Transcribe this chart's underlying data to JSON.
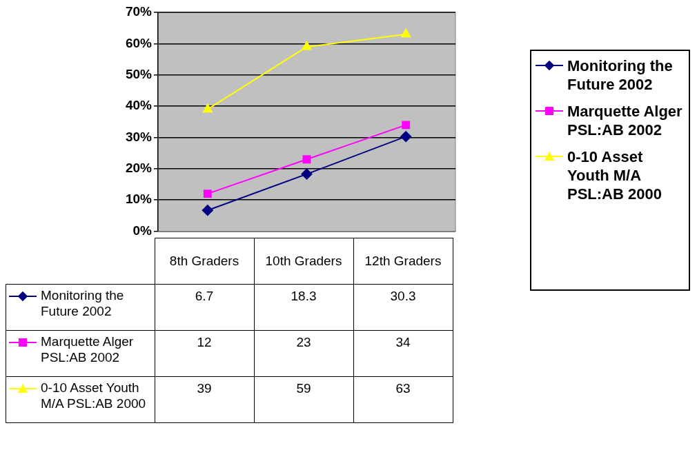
{
  "chart_data": {
    "type": "line",
    "categories": [
      "8th Graders",
      "10th Graders",
      "12th Graders"
    ],
    "series": [
      {
        "name": "Monitoring the Future 2002",
        "color": "#000080",
        "marker": "diamond",
        "values": [
          6.7,
          18.3,
          30.3
        ]
      },
      {
        "name": "Marquette Alger PSL:AB 2002",
        "color": "#ff00ff",
        "marker": "square",
        "values": [
          12,
          23,
          34
        ]
      },
      {
        "name": "0-10 Asset Youth M/A PSL:AB 2000",
        "color": "#ffff00",
        "marker": "triangle",
        "values": [
          39,
          59,
          63
        ]
      }
    ],
    "ylim": [
      0,
      70
    ],
    "yticks": [
      {
        "value": 0,
        "label": "0%"
      },
      {
        "value": 10,
        "label": "10%"
      },
      {
        "value": 20,
        "label": "20%"
      },
      {
        "value": 30,
        "label": "30%"
      },
      {
        "value": 40,
        "label": "40%"
      },
      {
        "value": 50,
        "label": "50%"
      },
      {
        "value": 60,
        "label": "60%"
      },
      {
        "value": 70,
        "label": "70%"
      }
    ],
    "grid": "y",
    "legend": "right",
    "data_labels": true
  }
}
